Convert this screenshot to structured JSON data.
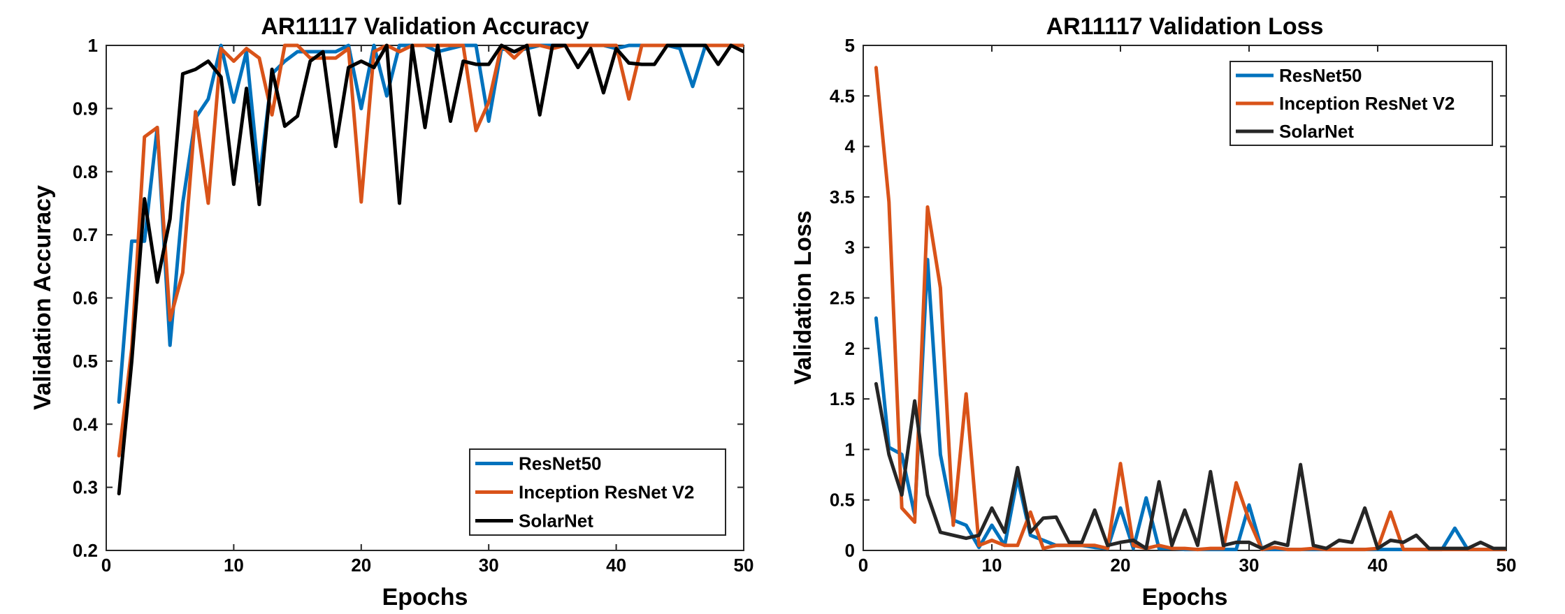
{
  "chart_data": [
    {
      "type": "line",
      "title": "AR11117 Validation Accuracy",
      "xlabel": "Epochs",
      "ylabel": "Validation Accuracy",
      "xlim": [
        0,
        50
      ],
      "ylim": [
        0.2,
        1
      ],
      "xticks": [
        "0",
        "10",
        "20",
        "30",
        "40",
        "50"
      ],
      "yticks": [
        "0.2",
        "0.3",
        "0.4",
        "0.5",
        "0.6",
        "0.7",
        "0.8",
        "0.9",
        "1"
      ],
      "legend_position": "bottom-right",
      "grid": false,
      "x": [
        1,
        2,
        3,
        4,
        5,
        6,
        7,
        8,
        9,
        10,
        11,
        12,
        13,
        14,
        15,
        16,
        17,
        18,
        19,
        20,
        21,
        22,
        23,
        24,
        25,
        26,
        27,
        28,
        29,
        30,
        31,
        32,
        33,
        34,
        35,
        36,
        37,
        38,
        39,
        40,
        41,
        42,
        43,
        44,
        45,
        46,
        47,
        48,
        49,
        50
      ],
      "series": [
        {
          "name": "ResNet50",
          "color": "#0072bd",
          "values": [
            0.435,
            0.69,
            0.69,
            0.87,
            0.525,
            0.75,
            0.885,
            0.915,
            1.0,
            0.91,
            0.99,
            0.785,
            0.955,
            0.975,
            0.99,
            0.99,
            0.99,
            0.99,
            1.0,
            0.9,
            1.0,
            0.92,
            1.0,
            1.0,
            1.0,
            0.99,
            0.995,
            1.0,
            1.0,
            0.88,
            0.995,
            0.99,
            0.995,
            1.0,
            1.0,
            1.0,
            1.0,
            1.0,
            1.0,
            0.995,
            1.0,
            1.0,
            1.0,
            1.0,
            0.995,
            0.935,
            1.0,
            1.0,
            1.0,
            1.0
          ]
        },
        {
          "name": "Inception ResNet V2",
          "color": "#d95319",
          "values": [
            0.35,
            0.52,
            0.855,
            0.87,
            0.565,
            0.64,
            0.895,
            0.75,
            0.995,
            0.975,
            0.995,
            0.98,
            0.89,
            1.0,
            1.0,
            0.98,
            0.98,
            0.98,
            0.995,
            0.752,
            0.99,
            1.0,
            0.99,
            1.0,
            1.0,
            1.0,
            1.0,
            1.0,
            0.865,
            0.91,
            1.0,
            0.98,
            1.0,
            1.0,
            0.995,
            1.0,
            1.0,
            1.0,
            1.0,
            1.0,
            0.915,
            1.0,
            1.0,
            1.0,
            1.0,
            1.0,
            1.0,
            1.0,
            1.0,
            1.0
          ]
        },
        {
          "name": "SolarNet",
          "color": "#000000",
          "values": [
            0.29,
            0.5,
            0.757,
            0.625,
            0.725,
            0.955,
            0.962,
            0.975,
            0.95,
            0.78,
            0.932,
            0.748,
            0.962,
            0.872,
            0.888,
            0.975,
            0.99,
            0.84,
            0.965,
            0.975,
            0.965,
            1.0,
            0.75,
            1.0,
            0.87,
            1.0,
            0.88,
            0.975,
            0.97,
            0.97,
            1.0,
            0.99,
            1.0,
            0.89,
            1.0,
            1.0,
            0.965,
            0.995,
            0.925,
            0.995,
            0.972,
            0.97,
            0.97,
            1.0,
            1.0,
            1.0,
            1.0,
            0.97,
            1.0,
            0.99
          ]
        }
      ]
    },
    {
      "type": "line",
      "title": "AR11117 Validation Loss",
      "xlabel": "Epochs",
      "ylabel": "Validation Loss",
      "xlim": [
        0,
        50
      ],
      "ylim": [
        0,
        5
      ],
      "xticks": [
        "0",
        "10",
        "20",
        "30",
        "40",
        "50"
      ],
      "yticks": [
        "0",
        "0.5",
        "1",
        "1.5",
        "2",
        "2.5",
        "3",
        "3.5",
        "4",
        "4.5",
        "5"
      ],
      "legend_position": "top-right",
      "grid": false,
      "x": [
        1,
        2,
        3,
        4,
        5,
        6,
        7,
        8,
        9,
        10,
        11,
        12,
        13,
        14,
        15,
        16,
        17,
        18,
        19,
        20,
        21,
        22,
        23,
        24,
        25,
        26,
        27,
        28,
        29,
        30,
        31,
        32,
        33,
        34,
        35,
        36,
        37,
        38,
        39,
        40,
        41,
        42,
        43,
        44,
        45,
        46,
        47,
        48,
        49,
        50
      ],
      "series": [
        {
          "name": "ResNet50",
          "color": "#0072bd",
          "values": [
            2.3,
            1.02,
            0.95,
            0.35,
            2.88,
            0.95,
            0.3,
            0.25,
            0.03,
            0.25,
            0.05,
            0.72,
            0.15,
            0.1,
            0.05,
            0.05,
            0.05,
            0.03,
            0.02,
            0.42,
            0.02,
            0.52,
            0.02,
            0.02,
            0.01,
            0.01,
            0.01,
            0.01,
            0.01,
            0.45,
            0.01,
            0.01,
            0.01,
            0.01,
            0.01,
            0.01,
            0.01,
            0.01,
            0.01,
            0.01,
            0.01,
            0.01,
            0.01,
            0.01,
            0.01,
            0.22,
            0.01,
            0.01,
            0.01,
            0.01
          ]
        },
        {
          "name": "Inception ResNet V2",
          "color": "#d95319",
          "values": [
            4.78,
            3.45,
            0.42,
            0.28,
            3.4,
            2.6,
            0.25,
            1.55,
            0.05,
            0.1,
            0.05,
            0.05,
            0.38,
            0.02,
            0.05,
            0.05,
            0.05,
            0.05,
            0.02,
            0.86,
            0.05,
            0.02,
            0.05,
            0.02,
            0.02,
            0.01,
            0.02,
            0.02,
            0.67,
            0.3,
            0.01,
            0.03,
            0.01,
            0.01,
            0.02,
            0.01,
            0.01,
            0.01,
            0.01,
            0.02,
            0.38,
            0.01,
            0.01,
            0.01,
            0.01,
            0.01,
            0.01,
            0.01,
            0.01,
            0.01
          ]
        },
        {
          "name": "SolarNet",
          "color": "#262626",
          "values": [
            1.65,
            0.95,
            0.55,
            1.48,
            0.55,
            0.18,
            0.15,
            0.12,
            0.15,
            0.42,
            0.18,
            0.82,
            0.18,
            0.32,
            0.33,
            0.08,
            0.08,
            0.4,
            0.05,
            0.08,
            0.1,
            0.02,
            0.68,
            0.05,
            0.4,
            0.05,
            0.78,
            0.05,
            0.08,
            0.08,
            0.02,
            0.08,
            0.05,
            0.85,
            0.05,
            0.02,
            0.1,
            0.08,
            0.42,
            0.02,
            0.1,
            0.08,
            0.15,
            0.02,
            0.02,
            0.02,
            0.02,
            0.08,
            0.02,
            0.02
          ]
        }
      ]
    }
  ]
}
